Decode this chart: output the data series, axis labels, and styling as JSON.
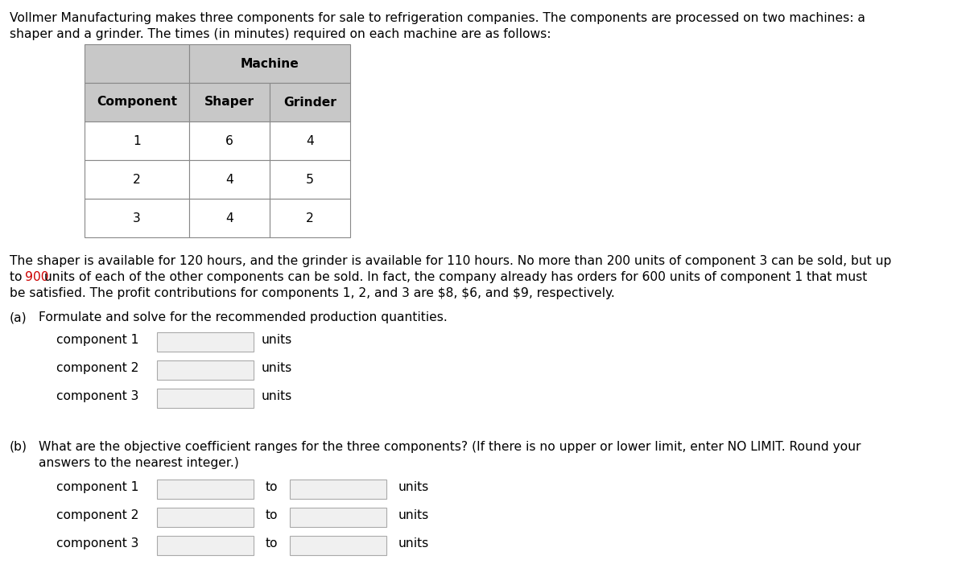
{
  "bg_color": "#ffffff",
  "text_color": "#000000",
  "red_color": "#cc0000",
  "header_bg": "#c8c8c8",
  "cell_bg": "#ffffff",
  "border_color": "#888888",
  "font_size": 11.2,
  "font_family": "DejaVu Sans",
  "intro_line1": "Vollmer Manufacturing makes three components for sale to refrigeration companies. The components are processed on two machines: a",
  "intro_line2": "shaper and a grinder. The times (in minutes) required on each machine are as follows:",
  "table_header_row1": [
    "",
    "Machine"
  ],
  "table_header_row2": [
    "Component",
    "Shaper",
    "Grinder"
  ],
  "table_rows": [
    [
      "1",
      "6",
      "4"
    ],
    [
      "2",
      "4",
      "5"
    ],
    [
      "3",
      "4",
      "2"
    ]
  ],
  "body_line1": "The shaper is available for 120 hours, and the grinder is available for 110 hours. No more than 200 units of component 3 can be sold, but up",
  "body_line2_pre": "to ",
  "body_line2_red": "900",
  "body_line2_post": " units of each of the other components can be sold. In fact, the company already has orders for 600 units of component 1 that must",
  "body_line3": "be satisfied. The profit contributions for components 1, 2, and 3 are $8, $6, and $9, respectively.",
  "part_a_label": "(a)",
  "part_a_text": "Formulate and solve for the recommended production quantities.",
  "part_a_components": [
    "component 1",
    "component 2",
    "component 3"
  ],
  "part_b_label": "(b)",
  "part_b_line1": "What are the objective coefficient ranges for the three components? (If there is no upper or lower limit, enter NO LIMIT. Round your",
  "part_b_line2": "answers to the nearest integer.)",
  "part_b_components": [
    "component 1",
    "component 2",
    "component 3"
  ],
  "unit_text": "units",
  "to_text": "to"
}
